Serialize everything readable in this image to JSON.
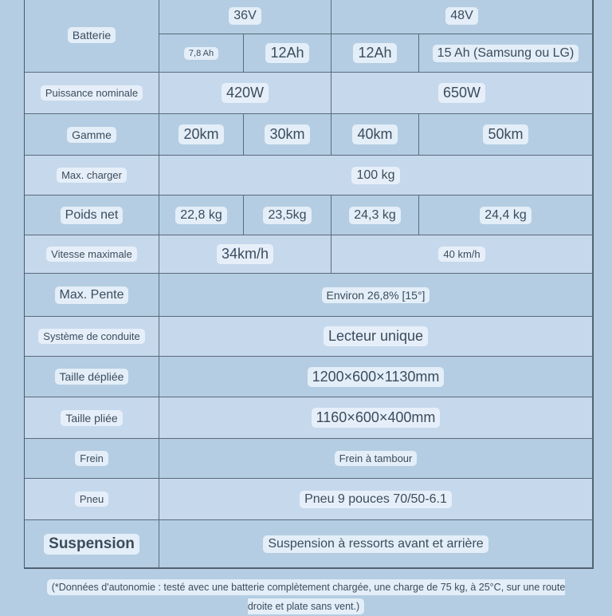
{
  "rows": {
    "batterie": {
      "label": "Batterie",
      "v1": "36V",
      "v2": "48V",
      "a1": "7,8 Ah",
      "a2": "12Ah",
      "a3": "12Ah",
      "a4": "15 Ah (Samsung ou LG)"
    },
    "puissance": {
      "label": "Puissance nominale",
      "v1": "420W",
      "v2": "650W"
    },
    "gamme": {
      "label": "Gamme",
      "v1": "20km",
      "v2": "30km",
      "v3": "40km",
      "v4": "50km"
    },
    "charge": {
      "label": "Max. charger",
      "v": "100 kg"
    },
    "poids": {
      "label": "Poids net",
      "v1": "22,8 kg",
      "v2": "23,5kg",
      "v3": "24,3 kg",
      "v4": "24,4 kg"
    },
    "vitesse": {
      "label": "Vitesse maximale",
      "v1": "34km/h",
      "v2": "40 km/h"
    },
    "pente": {
      "label": "Max. Pente",
      "v": "Environ 26,8% [15°]"
    },
    "conduite": {
      "label": "Système de conduite",
      "v": "Lecteur unique"
    },
    "depliee": {
      "label": "Taille dépliée",
      "v": "1200×600×1130mm"
    },
    "pliee": {
      "label": "Taille pliée",
      "v": "1160×600×400mm"
    },
    "frein": {
      "label": "Frein",
      "v": "Frein à tambour"
    },
    "pneu": {
      "label": "Pneu",
      "v": "Pneu 9 pouces 70/50-6.1"
    },
    "suspension": {
      "label": "Suspension",
      "v": "Suspension à ressorts avant et arrière"
    }
  },
  "footnote": "(*Données d'autonomie : testé avec une batterie complètement chargée, une charge de 75 kg, à 25°C, sur une route droite et plate sans vent.)"
}
